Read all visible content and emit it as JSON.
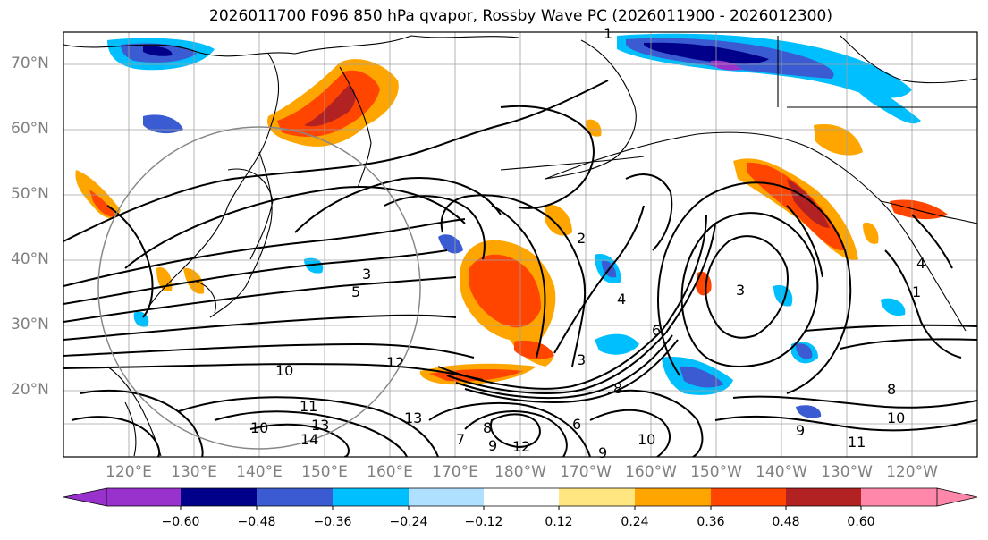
{
  "title": "2026011700 F096 850 hPa qvapor, Rossby Wave PC (2026011900 - 2026012300)",
  "map": {
    "lat_labels": [
      "70°N",
      "60°N",
      "50°N",
      "40°N",
      "30°N",
      "20°N"
    ],
    "lon_labels": [
      "120°E",
      "130°E",
      "140°E",
      "150°E",
      "160°E",
      "170°E",
      "180°W",
      "170°W",
      "160°W",
      "150°W",
      "140°W",
      "130°W",
      "120°W"
    ],
    "contour_labels": [
      "1",
      "2",
      "3",
      "4",
      "5",
      "6",
      "7",
      "8",
      "9",
      "10",
      "11",
      "12",
      "13",
      "14"
    ],
    "colors": {
      "land_outline": "#000000",
      "grid": "#a0a0a0",
      "contour": "#000000"
    }
  },
  "colorbar": {
    "tick_labels": [
      "−0.60",
      "−0.48",
      "−0.36",
      "−0.24",
      "−0.12",
      "0.12",
      "0.24",
      "0.36",
      "0.48",
      "0.60"
    ],
    "colors": [
      "#9932cc",
      "#00008b",
      "#3a5bd1",
      "#00bfff",
      "#b0e0ff",
      "#ffffff",
      "#ffe680",
      "#ffa500",
      "#ff4500",
      "#b22222",
      "#ff88aa"
    ]
  }
}
